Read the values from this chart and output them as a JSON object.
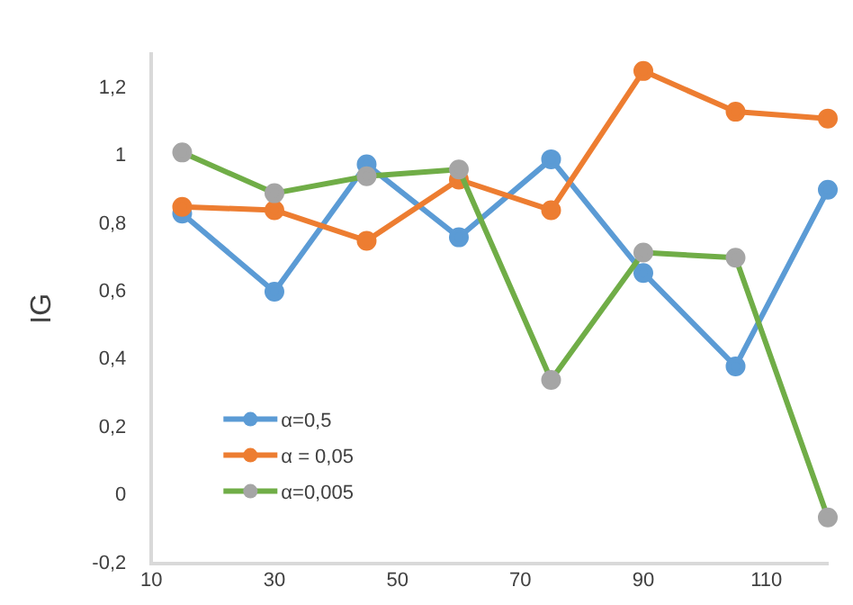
{
  "chart_data": {
    "type": "line",
    "ylabel": "IG",
    "x": [
      15,
      30,
      45,
      60,
      75,
      90,
      105,
      120
    ],
    "xlim": [
      10,
      120
    ],
    "xticks": [
      10,
      30,
      50,
      70,
      90,
      110
    ],
    "ylim": [
      -0.2,
      1.3
    ],
    "yticks": [
      {
        "value": -0.2,
        "label": "-0,2"
      },
      0,
      {
        "value": 0.2,
        "label": "0,2"
      },
      {
        "value": 0.4,
        "label": "0,4"
      },
      {
        "value": 0.6,
        "label": "0,6"
      },
      {
        "value": 0.8,
        "label": "0,8"
      },
      1,
      {
        "value": 1.2,
        "label": "1,2"
      }
    ],
    "grid": false,
    "legend": "bottom left",
    "marker": "circle",
    "line_style": "solid",
    "series": [
      {
        "name": "α=0,5",
        "color": "#5b9bd5",
        "values": [
          0.83,
          0.6,
          0.975,
          0.76,
          0.99,
          0.655,
          0.38,
          0.9
        ]
      },
      {
        "name": "α = 0,05",
        "color": "#ed7d31",
        "values": [
          0.85,
          0.84,
          0.75,
          0.93,
          0.84,
          1.25,
          1.13,
          1.11
        ]
      },
      {
        "name": "α=0,005",
        "color": "#70ad47",
        "colors": [
          "#a5a5a5",
          "#a5a5a5",
          "#a5a5a5",
          "#a5a5a5",
          "#a5a5a5",
          "#a5a5a5",
          "#a5a5a5",
          "#a5a5a5"
        ],
        "values": [
          1.01,
          0.89,
          0.94,
          0.96,
          0.34,
          0.715,
          0.7,
          -0.065
        ]
      }
    ]
  }
}
